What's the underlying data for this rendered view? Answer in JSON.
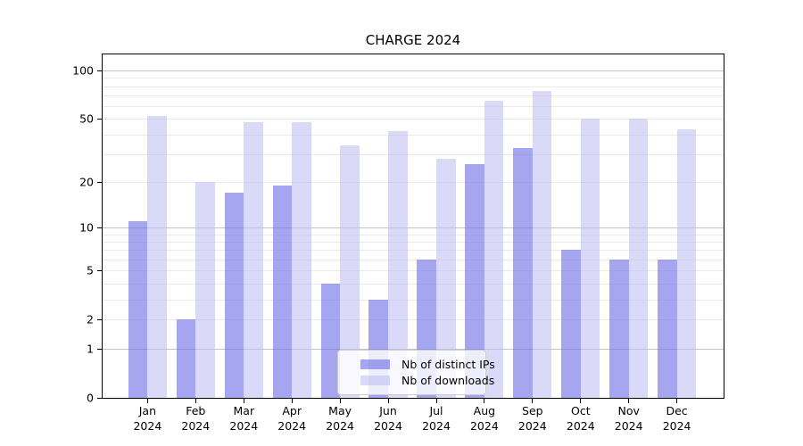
{
  "title": "CHARGE 2024",
  "chart_data": {
    "type": "bar",
    "title": "CHARGE 2024",
    "x_categories": [
      "Jan 2024",
      "Feb 2024",
      "Mar 2024",
      "Apr 2024",
      "May 2024",
      "Jun 2024",
      "Jul 2024",
      "Aug 2024",
      "Sep 2024",
      "Oct 2024",
      "Nov 2024",
      "Dec 2024"
    ],
    "x_tick_months": [
      "Jan",
      "Feb",
      "Mar",
      "Apr",
      "May",
      "Jun",
      "Jul",
      "Aug",
      "Sep",
      "Oct",
      "Nov",
      "Dec"
    ],
    "x_tick_year": "2024",
    "series": [
      {
        "name": "Nb of distinct IPs",
        "color": "rgba(110,110,230,0.62)",
        "values": [
          11,
          2,
          17,
          19,
          4,
          3,
          6,
          26,
          33,
          7,
          6,
          6
        ]
      },
      {
        "name": "Nb of downloads",
        "color": "rgba(187,187,242,0.55)",
        "values": [
          52,
          20,
          48,
          48,
          34,
          42,
          28,
          65,
          75,
          50,
          50,
          43
        ]
      }
    ],
    "y_axis": {
      "scale": "log1p",
      "tick_values": [
        0,
        1,
        2,
        5,
        10,
        20,
        50,
        100
      ],
      "gridlines_major": [
        1,
        10,
        100
      ],
      "gridlines_minor": [
        2,
        3,
        4,
        5,
        6,
        7,
        8,
        9,
        20,
        30,
        40,
        50,
        60,
        70,
        80,
        90
      ],
      "ylim": [
        0,
        130
      ],
      "grid": "on"
    },
    "legend": {
      "position": "lower center",
      "entries": [
        "Nb of distinct IPs",
        "Nb of downloads"
      ]
    },
    "background": "#ffffff"
  },
  "colors": {
    "spine": "#000000",
    "grid_major": "#c3c3c3",
    "grid_minor": "#e9e9e9",
    "text": "#000000",
    "legend_border": "#cccccc",
    "legend_bg": "rgba(255,255,255,0.8)"
  }
}
